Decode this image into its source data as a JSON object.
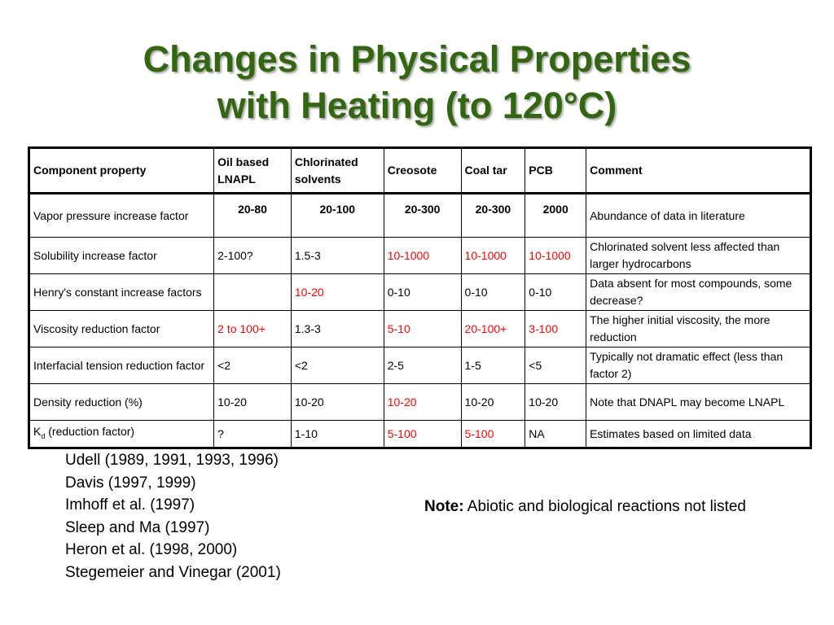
{
  "title": {
    "line1": "Changes in Physical Properties",
    "line2": "with Heating (to 120°C)"
  },
  "colors": {
    "title": "#336611",
    "highlight": "#ff0000"
  },
  "table": {
    "headers": [
      "Component property",
      "Oil based LNAPL",
      "Chlorinated solvents",
      "Creosote",
      "Coal tar",
      "PCB",
      "Comment"
    ],
    "rows": [
      {
        "property": "Vapor pressure increase factor",
        "cells": [
          {
            "v": "20-80",
            "red": false
          },
          {
            "v": "20-100",
            "red": false
          },
          {
            "v": "20-300",
            "red": false
          },
          {
            "v": "20-300",
            "red": false
          },
          {
            "v": "2000",
            "red": false
          }
        ],
        "comment": "Abundance of data in literature"
      },
      {
        "property": "Solubility increase factor",
        "cells": [
          {
            "v": "2-100?",
            "red": false
          },
          {
            "v": "1.5-3",
            "red": false
          },
          {
            "v": "10-1000",
            "red": true
          },
          {
            "v": "10-1000",
            "red": true
          },
          {
            "v": "10-1000",
            "red": true
          }
        ],
        "comment": "Chlorinated solvent less affected than larger hydrocarbons"
      },
      {
        "property": "Henry's constant increase factors",
        "cells": [
          {
            "v": "",
            "red": false
          },
          {
            "v": "10-20",
            "red": true
          },
          {
            "v": "0-10",
            "red": false
          },
          {
            "v": "0-10",
            "red": false
          },
          {
            "v": "0-10",
            "red": false
          }
        ],
        "comment": "Data absent for most compounds, some decrease?"
      },
      {
        "property": "Viscosity reduction factor",
        "cells": [
          {
            "v": "2 to 100+",
            "red": true
          },
          {
            "v": "1.3-3",
            "red": false
          },
          {
            "v": "5-10",
            "red": true
          },
          {
            "v": "20-100+",
            "red": true
          },
          {
            "v": "3-100",
            "red": true
          }
        ],
        "comment": "The higher initial viscosity, the more reduction"
      },
      {
        "property": "Interfacial tension reduction factor",
        "cells": [
          {
            "v": "<2",
            "red": false
          },
          {
            "v": "<2",
            "red": false
          },
          {
            "v": "2-5",
            "red": false
          },
          {
            "v": "1-5",
            "red": false
          },
          {
            "v": "<5",
            "red": false
          }
        ],
        "comment": "Typically not dramatic effect (less than factor 2)"
      },
      {
        "property": "Density reduction (%)",
        "cells": [
          {
            "v": "10-20",
            "red": false
          },
          {
            "v": "10-20",
            "red": false
          },
          {
            "v": "10-20",
            "red": true
          },
          {
            "v": "10-20",
            "red": false
          },
          {
            "v": "10-20",
            "red": false
          }
        ],
        "comment": "Note that DNAPL may become LNAPL"
      },
      {
        "property_main": "K",
        "property_sub": "d",
        "property_rest": " (reduction factor)",
        "cells": [
          {
            "v": "?",
            "red": false
          },
          {
            "v": "1-10",
            "red": false
          },
          {
            "v": "5-100",
            "red": true
          },
          {
            "v": "5-100",
            "red": true
          },
          {
            "v": "NA",
            "red": false
          }
        ],
        "comment": "Estimates based on limited data"
      }
    ]
  },
  "references": [
    "Udell (1989, 1991, 1993, 1996)",
    "Davis (1997, 1999)",
    "Imhoff et al. (1997)",
    "Sleep and Ma (1997)",
    "Heron et al. (1998, 2000)",
    "Stegemeier and Vinegar (2001)"
  ],
  "note": {
    "label": "Note:",
    "text": " Abiotic and biological reactions not listed"
  }
}
